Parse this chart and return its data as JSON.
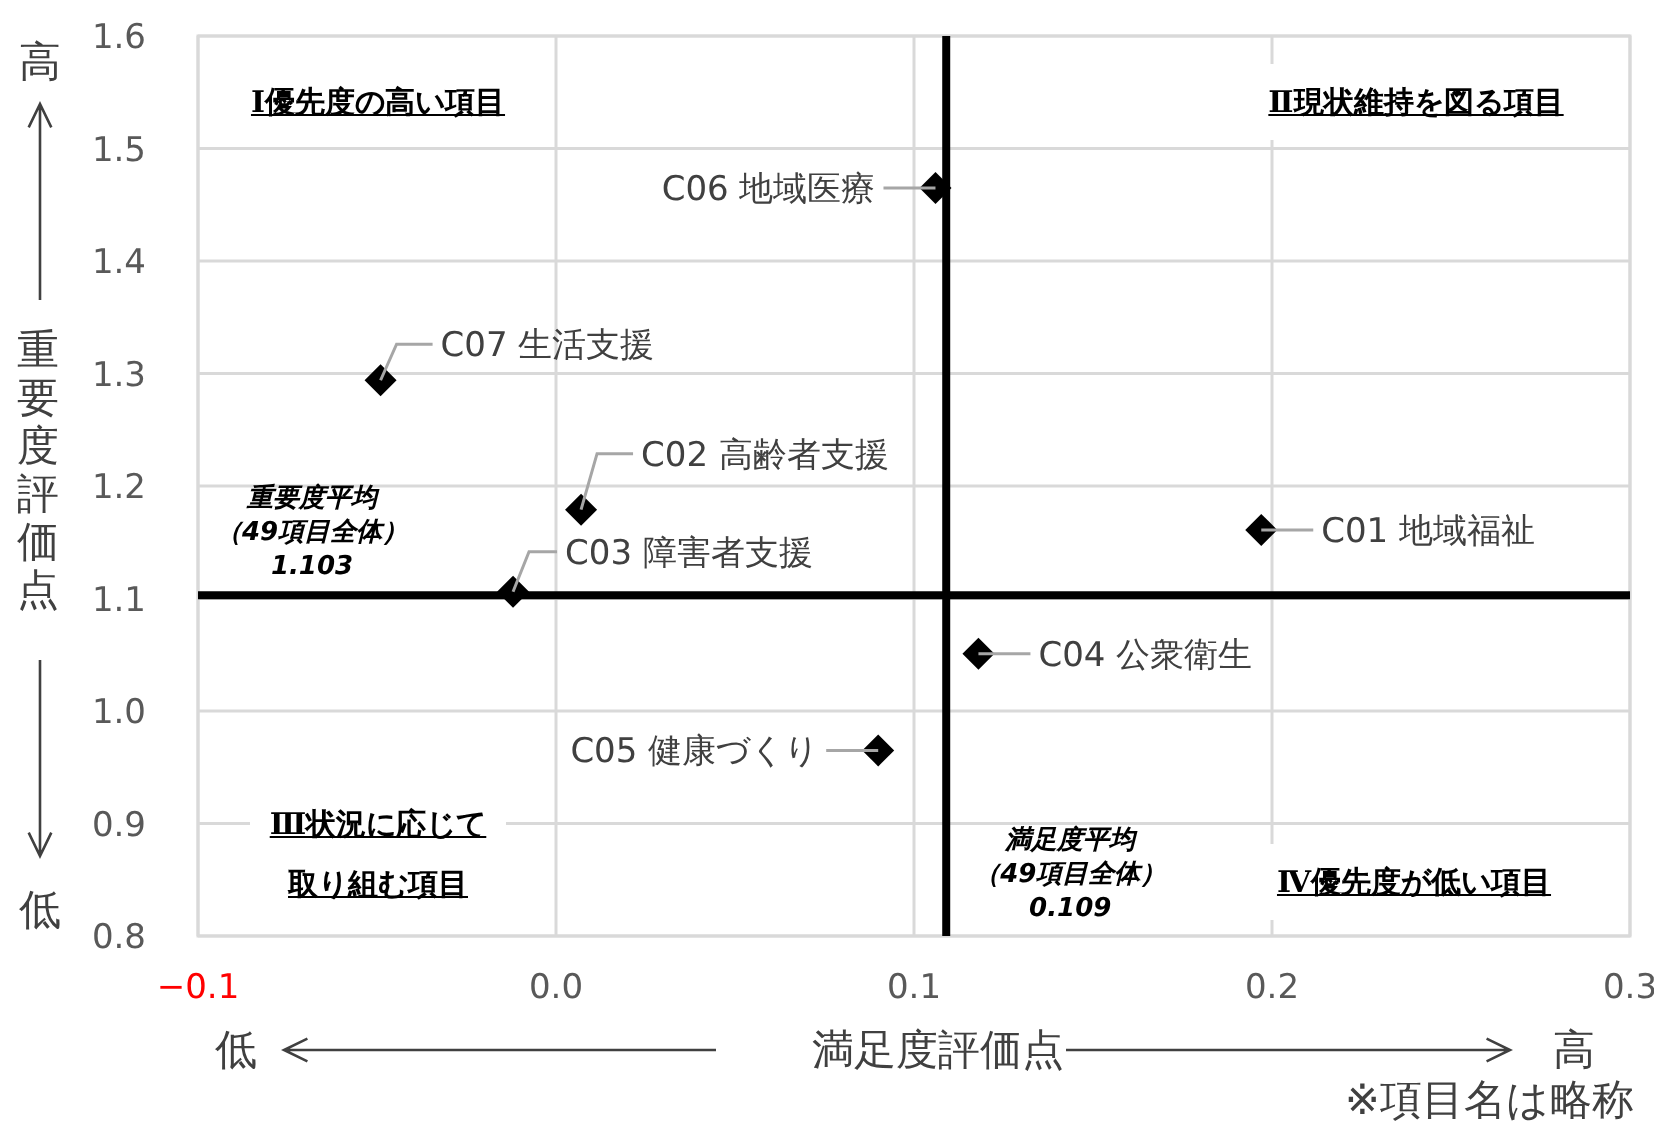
{
  "chart_data": {
    "type": "scatter",
    "xlabel": "満足度評価点",
    "ylabel": "重要度評価点",
    "xlim": [
      -0.1,
      0.3
    ],
    "ylim": [
      0.8,
      1.6
    ],
    "xticks": [
      {
        "value": -0.1,
        "label": "−0.1"
      },
      {
        "value": 0,
        "label": "0.0"
      },
      0.1,
      0.2,
      0.3
    ],
    "yticks": [
      0.8,
      0.9,
      {
        "value": 1,
        "label": "1.0"
      },
      1.1,
      1.2,
      1.3,
      1.4,
      1.5,
      1.6
    ],
    "grid": true,
    "marker": "diamond",
    "series": [
      {
        "color": "#000000",
        "x": [
          0.106,
          -0.049,
          0.007,
          -0.012,
          0.197,
          0.118,
          0.09
        ],
        "values": [
          1.465,
          1.294,
          1.179,
          1.106,
          1.161,
          1.051,
          0.965
        ],
        "value_labels": [
          "C06 地域医療",
          "C07 生活支援",
          "C02 高齢者支援",
          "C03 障害者支援",
          "C01 地域福祉",
          "C04 公衆衛生",
          "C05 健康づくり"
        ]
      }
    ],
    "ref_lines": [
      {
        "axis": "x",
        "value": 0.109,
        "label": "満足度平均（49項目全体）0.109",
        "color": "#000000"
      },
      {
        "axis": "y",
        "value": 1.103,
        "label": "重要度平均（49項目全体）1.103",
        "color": "#000000"
      }
    ],
    "annotations": [
      "Ⅰ優先度の高い項目",
      "Ⅱ現状維持を図る項目",
      "Ⅲ状況に応じて取り組む項目",
      "Ⅳ優先度が低い項目",
      "高",
      "低",
      "低",
      "高",
      "※項目名は略称"
    ]
  }
}
